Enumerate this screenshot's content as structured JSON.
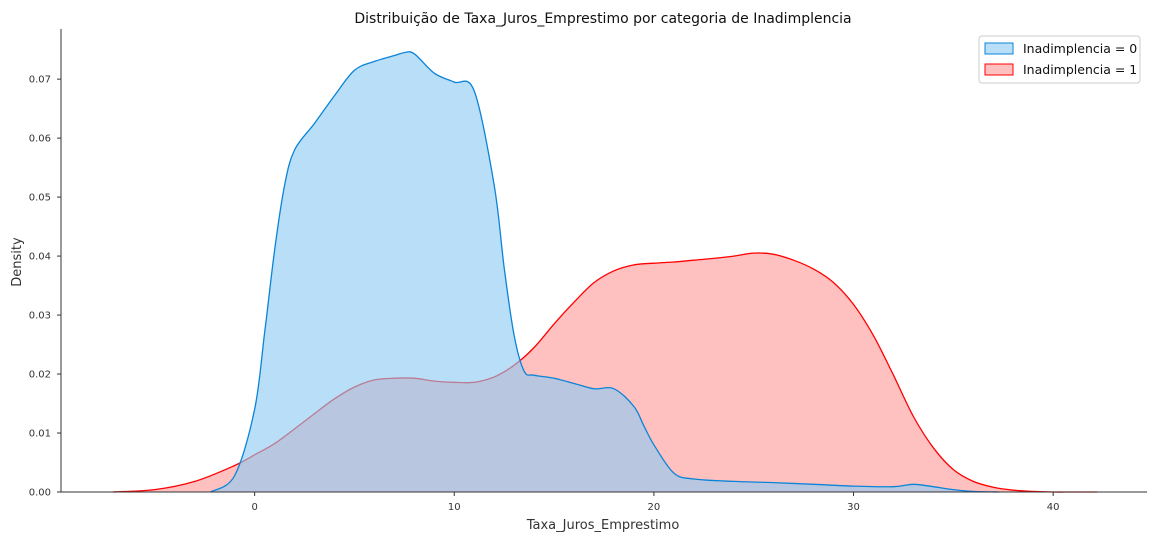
{
  "chart_data": {
    "type": "area",
    "title": "Distribuição de Taxa_Juros_Emprestimo por categoria de Inadimplencia",
    "xlabel": "Taxa_Juros_Emprestimo",
    "ylabel": "Density",
    "xlim": [
      -9.7,
      44.7
    ],
    "ylim": [
      0,
      0.0785
    ],
    "xticks": [
      0,
      10,
      20,
      30,
      40
    ],
    "yticks": [
      0.0,
      0.01,
      0.02,
      0.03,
      0.04,
      0.05,
      0.06,
      0.07
    ],
    "ytick_labels": [
      "0.00",
      "0.01",
      "0.02",
      "0.03",
      "0.04",
      "0.05",
      "0.06",
      "0.07"
    ],
    "legend_position": "top-right",
    "grid": false,
    "series": [
      {
        "name": "Inadimplencia = 1",
        "color": "#ff0000",
        "fill": "#ff9a9a",
        "x": [
          -7.1,
          -5,
          -3,
          -1,
          0,
          1,
          2,
          3,
          4,
          5,
          6,
          7,
          8,
          9,
          10,
          11,
          12,
          13,
          14,
          15,
          16,
          17,
          18,
          19,
          20,
          21,
          22,
          23,
          24,
          25,
          26,
          27,
          28,
          29,
          30,
          31,
          32,
          33,
          34,
          35,
          36,
          37,
          38,
          39,
          40,
          41,
          42.2
        ],
        "y": [
          0.0,
          0.0004,
          0.0018,
          0.0045,
          0.0063,
          0.0082,
          0.0107,
          0.0133,
          0.0158,
          0.0178,
          0.019,
          0.0193,
          0.0193,
          0.0188,
          0.0186,
          0.0186,
          0.0195,
          0.0215,
          0.0245,
          0.0285,
          0.0322,
          0.0355,
          0.0375,
          0.0385,
          0.0388,
          0.039,
          0.0393,
          0.0396,
          0.04,
          0.0405,
          0.0403,
          0.0393,
          0.0378,
          0.0355,
          0.0318,
          0.0265,
          0.0198,
          0.0128,
          0.0075,
          0.0038,
          0.0018,
          0.0008,
          0.0003,
          0.0001,
          0.0,
          0.0,
          0.0
        ]
      },
      {
        "name": "Inadimplencia = 0",
        "color": "#0a84d8",
        "fill": "#8ec9f2",
        "x": [
          -2.2,
          -1,
          0,
          0.5,
          1,
          1.5,
          2,
          3,
          4,
          5,
          6,
          7,
          7.5,
          8,
          9,
          10,
          11,
          12,
          12.5,
          13,
          13.5,
          14,
          15,
          16,
          17,
          18,
          19,
          19.5,
          20,
          21,
          22,
          24,
          26,
          28,
          30,
          32,
          33,
          34,
          35,
          36,
          37.3
        ],
        "y": [
          0.0,
          0.0028,
          0.014,
          0.027,
          0.041,
          0.052,
          0.058,
          0.0625,
          0.0672,
          0.0715,
          0.073,
          0.074,
          0.0745,
          0.0743,
          0.071,
          0.0695,
          0.068,
          0.052,
          0.038,
          0.0265,
          0.0205,
          0.0198,
          0.0193,
          0.0184,
          0.0175,
          0.0175,
          0.0145,
          0.0112,
          0.008,
          0.0032,
          0.0022,
          0.0018,
          0.0016,
          0.0013,
          0.001,
          0.0009,
          0.0013,
          0.0009,
          0.0004,
          0.0001,
          0.0
        ]
      }
    ]
  }
}
